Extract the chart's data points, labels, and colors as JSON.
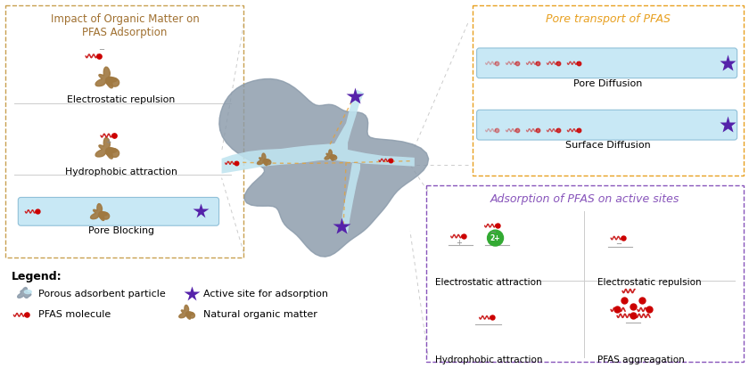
{
  "fig_width": 8.4,
  "fig_height": 4.13,
  "bg_color": "#ffffff",
  "particle_color": "#8a9aaa",
  "pore_color": "#c0e4f0",
  "pfas_color": "#cc2222",
  "organic_color": "#a07840",
  "active_site_color": "#5522aa",
  "left_box_color": "#c8a050",
  "left_box_title_color": "#a07030",
  "right_top_color": "#e8a020",
  "right_bot_color": "#8855bb",
  "label_elec_rep": "Electrostatic repulsion",
  "label_hydrophobic": "Hydrophobic attraction",
  "label_pore_blocking": "Pore Blocking",
  "label_pore_diff": "Pore Diffusion",
  "label_surf_diff": "Surface Diffusion",
  "label_elec_att": "Electrostatic attraction",
  "label_elec_rep2": "Electrostatic repulsion",
  "label_hydrophob2": "Hydrophobic attraction",
  "label_pfas_agg": "PFAS aggreagation",
  "legend_title": "Legend:",
  "legend_porous": "Porous adsorbent particle",
  "legend_active": "Active site for adsorption",
  "legend_pfas": "PFAS molecule",
  "legend_organic": "Natural organic matter"
}
